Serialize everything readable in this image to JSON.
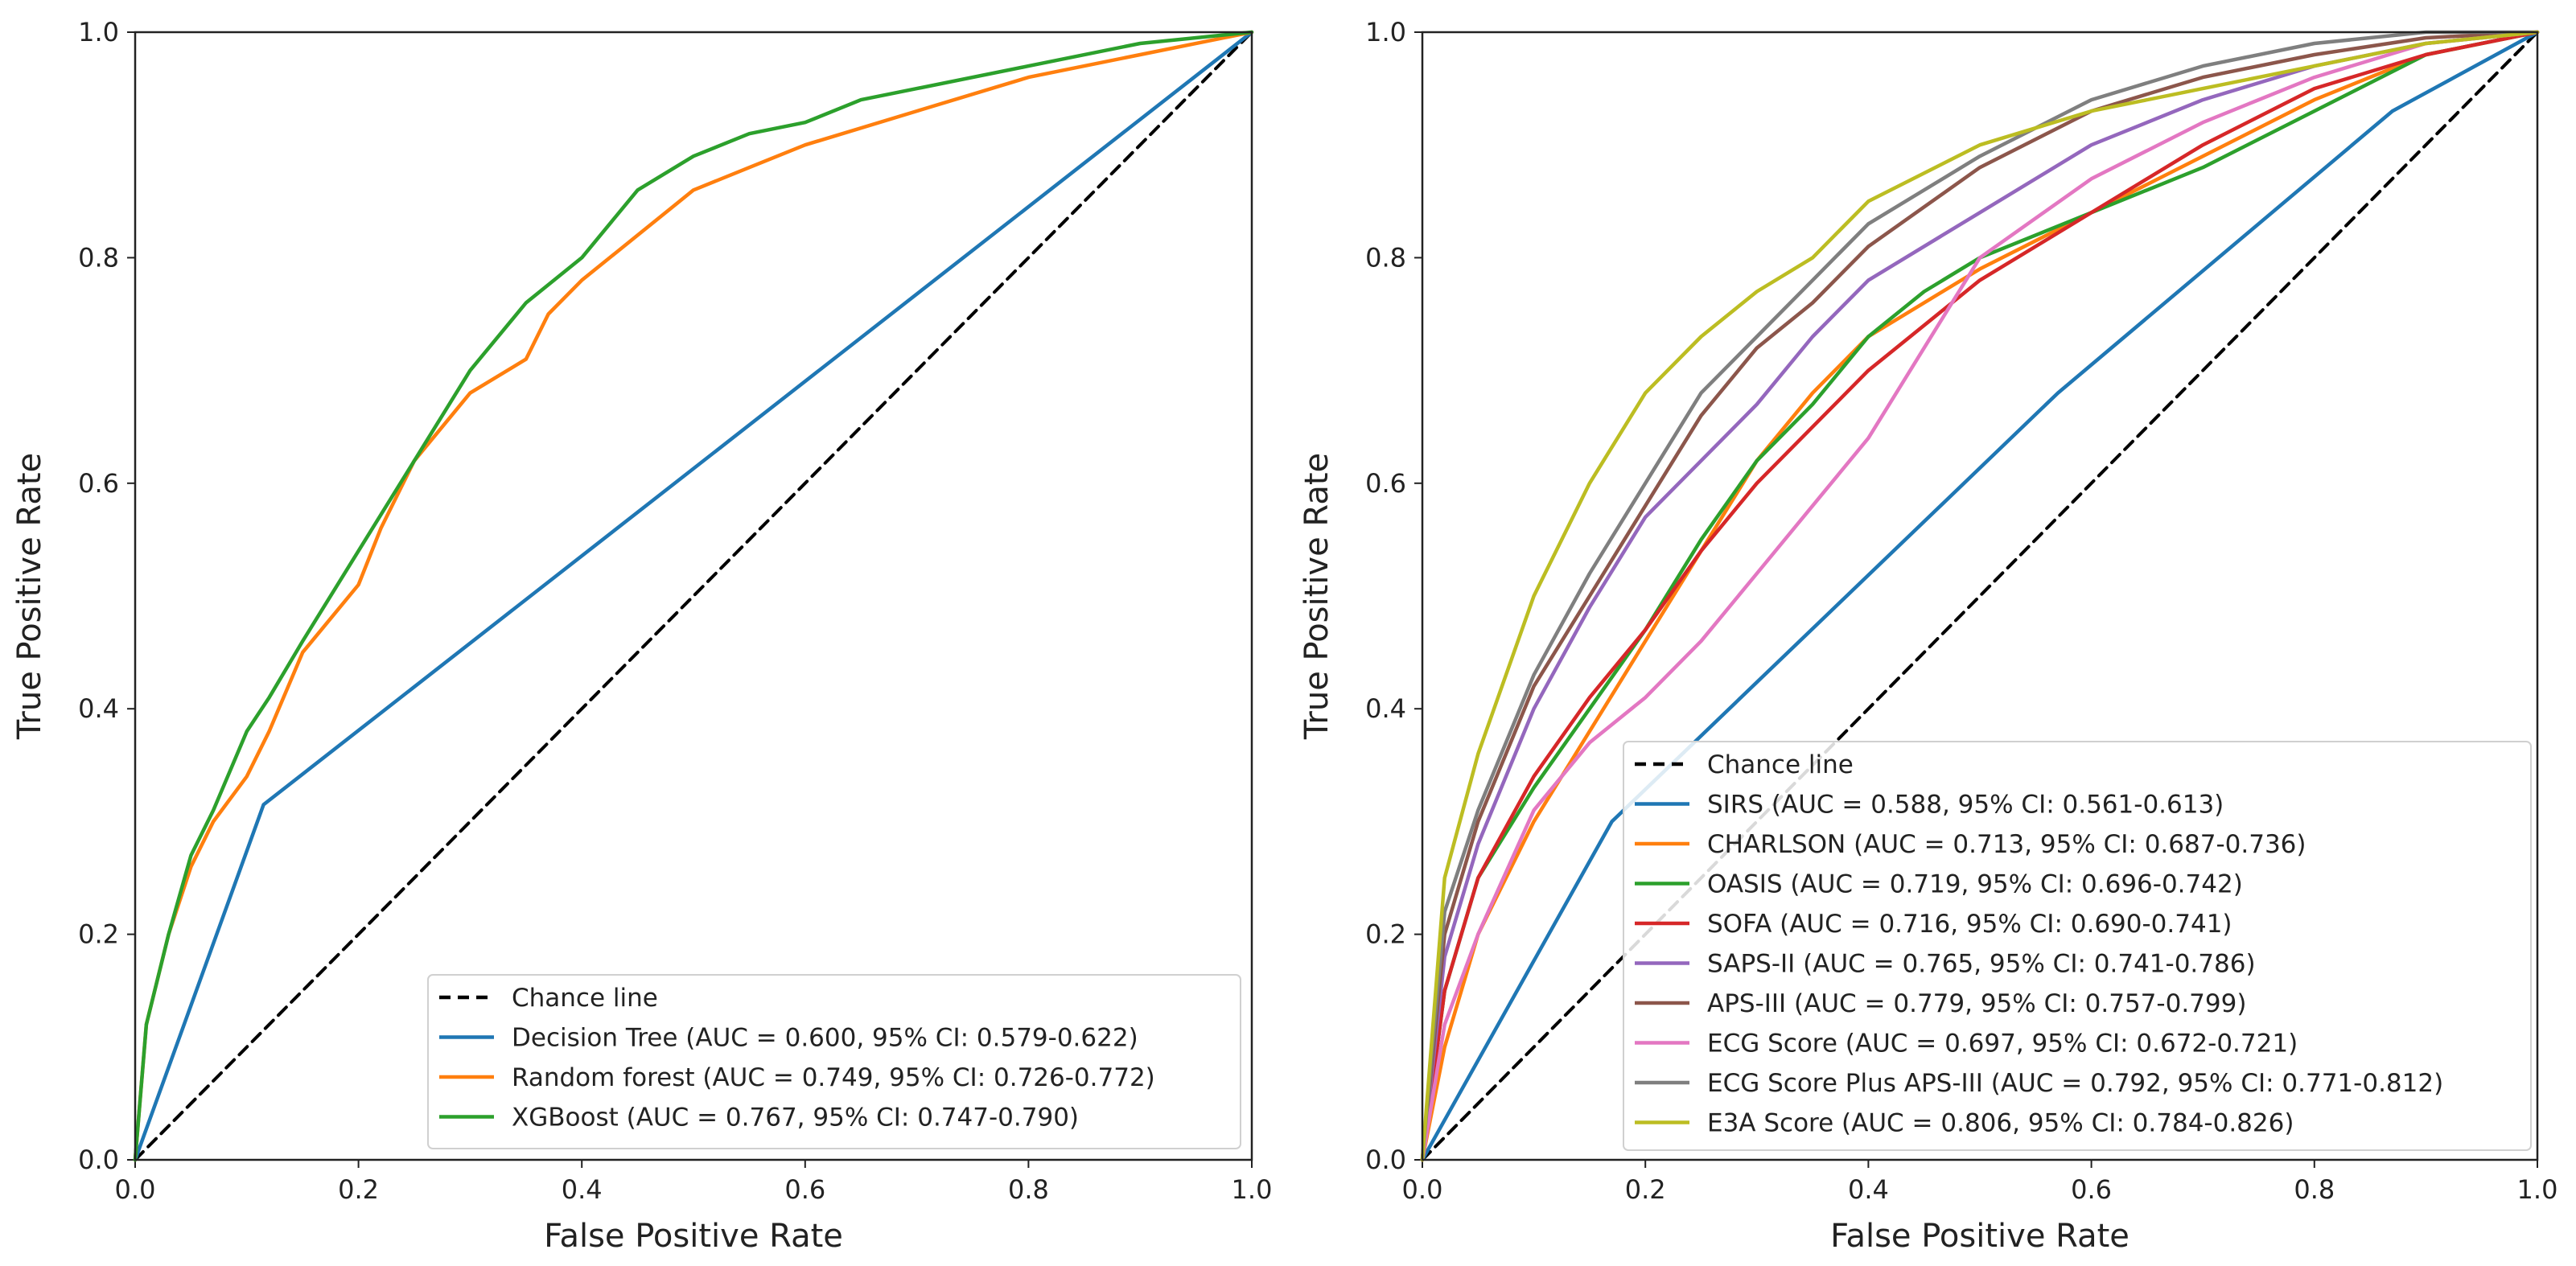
{
  "chart_data": [
    {
      "type": "line",
      "xlabel": "False Positive Rate",
      "ylabel": "True Positive Rate",
      "xlim": [
        0.0,
        1.0
      ],
      "ylim": [
        0.0,
        1.0
      ],
      "xticks": [
        "0.0",
        "0.2",
        "0.4",
        "0.6",
        "0.8",
        "1.0"
      ],
      "yticks": [
        "0.0",
        "0.2",
        "0.4",
        "0.6",
        "0.8",
        "1.0"
      ],
      "legend_position": "lower-right",
      "series": [
        {
          "name": "Chance line",
          "color": "#000000",
          "dashed": true,
          "x": [
            0,
            1
          ],
          "y": [
            0,
            1
          ]
        },
        {
          "name": "Decision Tree (AUC = 0.600, 95% CI: 0.579-0.622)",
          "color": "#1f77b4",
          "x": [
            0,
            0.115,
            1.0
          ],
          "y": [
            0,
            0.315,
            1.0
          ]
        },
        {
          "name": "Random forest (AUC = 0.749, 95% CI: 0.726-0.772)",
          "color": "#ff7f0e",
          "x": [
            0,
            0.01,
            0.03,
            0.05,
            0.07,
            0.1,
            0.12,
            0.15,
            0.2,
            0.22,
            0.25,
            0.3,
            0.35,
            0.37,
            0.4,
            0.45,
            0.5,
            0.55,
            0.6,
            0.7,
            0.8,
            0.9,
            1.0
          ],
          "y": [
            0,
            0.12,
            0.2,
            0.26,
            0.3,
            0.34,
            0.38,
            0.45,
            0.51,
            0.56,
            0.62,
            0.68,
            0.71,
            0.75,
            0.78,
            0.82,
            0.86,
            0.88,
            0.9,
            0.93,
            0.96,
            0.98,
            1.0
          ]
        },
        {
          "name": "XGBoost (AUC = 0.767, 95% CI: 0.747-0.790)",
          "color": "#2ca02c",
          "x": [
            0,
            0.01,
            0.03,
            0.05,
            0.07,
            0.1,
            0.12,
            0.15,
            0.2,
            0.25,
            0.3,
            0.35,
            0.4,
            0.45,
            0.5,
            0.55,
            0.6,
            0.65,
            0.7,
            0.8,
            0.9,
            1.0
          ],
          "y": [
            0,
            0.12,
            0.2,
            0.27,
            0.31,
            0.38,
            0.41,
            0.46,
            0.54,
            0.62,
            0.7,
            0.76,
            0.8,
            0.86,
            0.89,
            0.91,
            0.92,
            0.94,
            0.95,
            0.97,
            0.99,
            1.0
          ]
        }
      ]
    },
    {
      "type": "line",
      "xlabel": "False Positive Rate",
      "ylabel": "True Positive Rate",
      "xlim": [
        0.0,
        1.0
      ],
      "ylim": [
        0.0,
        1.0
      ],
      "xticks": [
        "0.0",
        "0.2",
        "0.4",
        "0.6",
        "0.8",
        "1.0"
      ],
      "yticks": [
        "0.0",
        "0.2",
        "0.4",
        "0.6",
        "0.8",
        "1.0"
      ],
      "legend_position": "lower-right",
      "series": [
        {
          "name": "Chance line",
          "color": "#000000",
          "dashed": true,
          "x": [
            0,
            1
          ],
          "y": [
            0,
            1
          ]
        },
        {
          "name": "SIRS (AUC = 0.588, 95% CI: 0.561-0.613)",
          "color": "#1f77b4",
          "x": [
            0,
            0.17,
            0.57,
            0.87,
            1.0
          ],
          "y": [
            0,
            0.3,
            0.68,
            0.93,
            1.0
          ]
        },
        {
          "name": "CHARLSON (AUC = 0.713, 95% CI: 0.687-0.736)",
          "color": "#ff7f0e",
          "x": [
            0,
            0.02,
            0.05,
            0.1,
            0.15,
            0.2,
            0.25,
            0.3,
            0.35,
            0.4,
            0.5,
            0.6,
            0.7,
            0.8,
            0.9,
            1.0
          ],
          "y": [
            0,
            0.1,
            0.2,
            0.3,
            0.38,
            0.46,
            0.54,
            0.62,
            0.68,
            0.73,
            0.79,
            0.84,
            0.89,
            0.94,
            0.98,
            1.0
          ]
        },
        {
          "name": "OASIS (AUC = 0.719, 95% CI: 0.696-0.742)",
          "color": "#2ca02c",
          "x": [
            0,
            0.02,
            0.05,
            0.1,
            0.15,
            0.2,
            0.25,
            0.3,
            0.35,
            0.4,
            0.45,
            0.5,
            0.6,
            0.7,
            0.8,
            0.9,
            1.0
          ],
          "y": [
            0,
            0.15,
            0.25,
            0.33,
            0.4,
            0.47,
            0.55,
            0.62,
            0.67,
            0.73,
            0.77,
            0.8,
            0.84,
            0.88,
            0.93,
            0.98,
            1.0
          ]
        },
        {
          "name": "SOFA (AUC = 0.716, 95% CI: 0.690-0.741)",
          "color": "#d62728",
          "x": [
            0,
            0.02,
            0.05,
            0.1,
            0.15,
            0.2,
            0.25,
            0.3,
            0.35,
            0.4,
            0.5,
            0.6,
            0.7,
            0.8,
            0.9,
            1.0
          ],
          "y": [
            0,
            0.15,
            0.25,
            0.34,
            0.41,
            0.47,
            0.54,
            0.6,
            0.65,
            0.7,
            0.78,
            0.84,
            0.9,
            0.95,
            0.98,
            1.0
          ]
        },
        {
          "name": "SAPS-II (AUC = 0.765, 95% CI: 0.741-0.786)",
          "color": "#9467bd",
          "x": [
            0,
            0.02,
            0.05,
            0.1,
            0.15,
            0.2,
            0.25,
            0.3,
            0.35,
            0.4,
            0.5,
            0.6,
            0.7,
            0.8,
            0.9,
            1.0
          ],
          "y": [
            0,
            0.18,
            0.28,
            0.4,
            0.49,
            0.57,
            0.62,
            0.67,
            0.73,
            0.78,
            0.84,
            0.9,
            0.94,
            0.97,
            0.99,
            1.0
          ]
        },
        {
          "name": "APS-III (AUC = 0.779, 95% CI: 0.757-0.799)",
          "color": "#8c564b",
          "x": [
            0,
            0.02,
            0.05,
            0.1,
            0.15,
            0.2,
            0.25,
            0.3,
            0.35,
            0.4,
            0.5,
            0.6,
            0.7,
            0.8,
            0.9,
            1.0
          ],
          "y": [
            0,
            0.2,
            0.3,
            0.42,
            0.5,
            0.58,
            0.66,
            0.72,
            0.76,
            0.81,
            0.88,
            0.93,
            0.96,
            0.98,
            0.995,
            1.0
          ]
        },
        {
          "name": "ECG Score (AUC = 0.697, 95% CI: 0.672-0.721)",
          "color": "#e377c2",
          "x": [
            0,
            0.02,
            0.05,
            0.1,
            0.15,
            0.2,
            0.25,
            0.3,
            0.35,
            0.4,
            0.45,
            0.5,
            0.6,
            0.7,
            0.8,
            0.9,
            1.0
          ],
          "y": [
            0,
            0.12,
            0.2,
            0.31,
            0.37,
            0.41,
            0.46,
            0.52,
            0.58,
            0.64,
            0.72,
            0.8,
            0.87,
            0.92,
            0.96,
            0.99,
            1.0
          ]
        },
        {
          "name": "ECG Score Plus APS-III (AUC = 0.792, 95% CI: 0.771-0.812)",
          "color": "#7f7f7f",
          "x": [
            0,
            0.02,
            0.05,
            0.1,
            0.15,
            0.2,
            0.25,
            0.3,
            0.35,
            0.4,
            0.5,
            0.6,
            0.7,
            0.8,
            0.9,
            1.0
          ],
          "y": [
            0,
            0.22,
            0.31,
            0.43,
            0.52,
            0.6,
            0.68,
            0.73,
            0.78,
            0.83,
            0.89,
            0.94,
            0.97,
            0.99,
            1.0,
            1.0
          ]
        },
        {
          "name": "E3A Score (AUC = 0.806, 95% CI: 0.784-0.826)",
          "color": "#bcbd22",
          "x": [
            0,
            0.02,
            0.05,
            0.1,
            0.15,
            0.2,
            0.25,
            0.3,
            0.35,
            0.4,
            0.5,
            0.6,
            0.7,
            0.8,
            0.9,
            1.0
          ],
          "y": [
            0,
            0.25,
            0.36,
            0.5,
            0.6,
            0.68,
            0.73,
            0.77,
            0.8,
            0.85,
            0.9,
            0.93,
            0.95,
            0.97,
            0.99,
            1.0
          ]
        }
      ]
    }
  ]
}
